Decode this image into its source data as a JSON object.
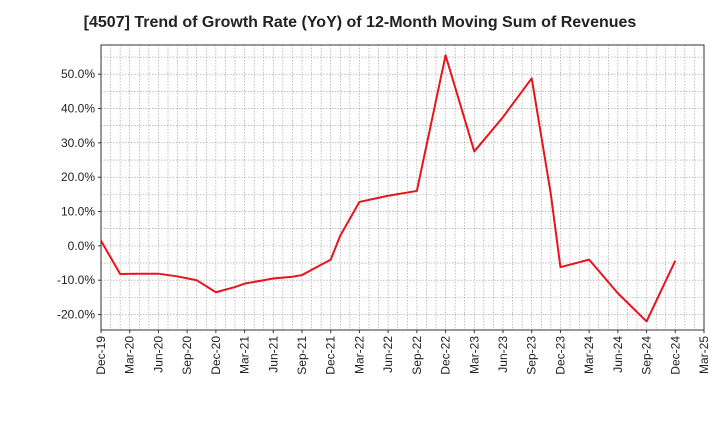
{
  "chart_data": {
    "type": "line",
    "title": "[4507]  Trend of Growth Rate (YoY) of 12-Month Moving Sum of Revenues",
    "xlabel": "",
    "ylabel": "",
    "categories": [
      "Dec-19",
      "Mar-20",
      "Jun-20",
      "Sep-20",
      "Dec-20",
      "Mar-21",
      "Jun-21",
      "Sep-21",
      "Dec-21",
      "Mar-22",
      "Jun-22",
      "Sep-22",
      "Dec-22",
      "Mar-23",
      "Jun-23",
      "Sep-23",
      "Dec-23",
      "Mar-24",
      "Jun-24",
      "Sep-24",
      "Dec-24",
      "Mar-25"
    ],
    "series": [
      {
        "color": "#e8141b",
        "x": [
          "Dec-19",
          "Feb-20",
          "Apr-20",
          "Jun-20",
          "Aug-20",
          "Oct-20",
          "Dec-20",
          "Feb-21",
          "Mar-21",
          "May-21",
          "Jun-21",
          "Aug-21",
          "Sep-21",
          "Oct-21",
          "Dec-21",
          "Jan-22",
          "Mar-22",
          "Jun-22",
          "Sep-22",
          "Dec-22",
          "Mar-23",
          "Jun-23",
          "Sep-23",
          "Nov-23",
          "Dec-23",
          "Mar-24",
          "Jun-24",
          "Sep-24",
          "Dec-24"
        ],
        "values": [
          1.5,
          -8.2,
          -8.1,
          -8.1,
          -8.9,
          -10.0,
          -13.5,
          -12.0,
          -11.0,
          -10.0,
          -9.5,
          -9.0,
          -8.5,
          -7.0,
          -4.0,
          3.0,
          12.8,
          14.6,
          16.0,
          55.5,
          27.5,
          37.5,
          48.8,
          15.0,
          -6.2,
          -4.0,
          -13.8,
          -22.0,
          -4.3
        ]
      }
    ],
    "yticks": [
      "50.0%",
      "40.0%",
      "30.0%",
      "20.0%",
      "10.0%",
      "0.0%",
      "-10.0%",
      "-20.0%"
    ],
    "ylim": [
      -24.5,
      58.5
    ],
    "y_unit": "%",
    "grid": true
  }
}
